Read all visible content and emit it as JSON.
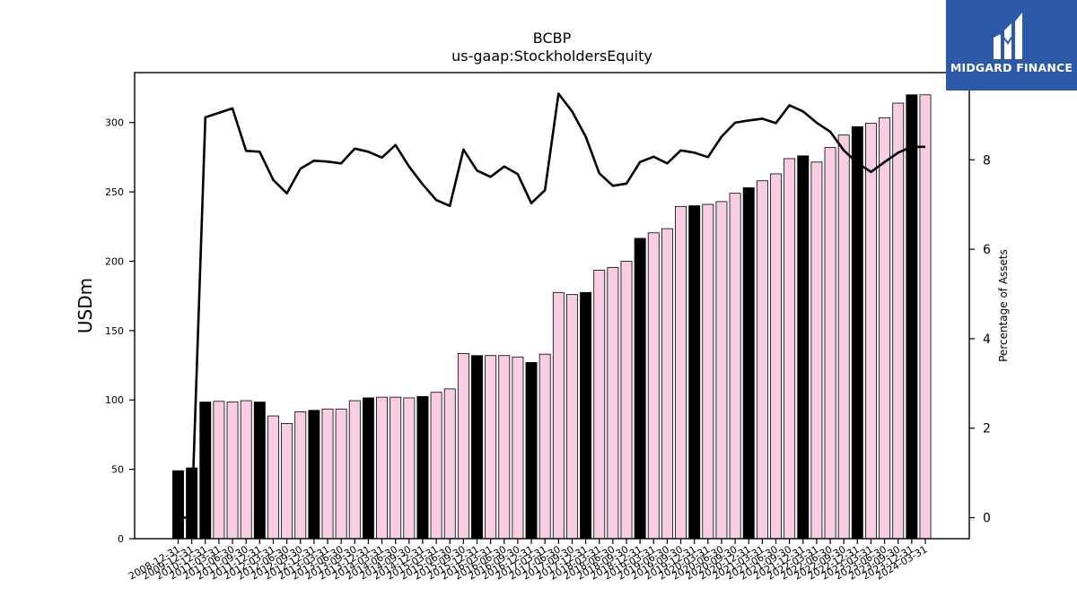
{
  "brand": {
    "name": "MIDGARD FINANCE",
    "background": "#2d5aa8",
    "text_color": "#ffffff"
  },
  "chart_data": {
    "type": "bar+line",
    "title": "BCBP",
    "subtitle": "us-gaap:StockholdersEquity",
    "ylabel": "USDm",
    "y2label": "Percentage of Assets",
    "ylim": [
      0,
      336
    ],
    "y2lim": [
      -0.47,
      9.95
    ],
    "yticks": [
      0,
      50,
      100,
      150,
      200,
      250,
      300
    ],
    "y2ticks": [
      0,
      2,
      4,
      6,
      8
    ],
    "grid": false,
    "colors": {
      "annual_bar": "#000000",
      "quarter_bar": "#f8cce2",
      "bar_edge": "#000000",
      "line": "#000000"
    },
    "categories": [
      "2008-12-31",
      "2009-12-31",
      "2010-12-31",
      "2011-03-31",
      "2011-06-30",
      "2011-09-30",
      "2011-12-31",
      "2012-03-31",
      "2012-06-30",
      "2012-09-30",
      "2012-12-31",
      "2013-03-31",
      "2013-06-30",
      "2013-09-30",
      "2013-12-31",
      "2014-03-31",
      "2014-06-30",
      "2014-09-30",
      "2014-12-31",
      "2015-03-31",
      "2015-06-30",
      "2015-09-30",
      "2015-12-31",
      "2016-03-31",
      "2016-06-30",
      "2016-09-30",
      "2016-12-31",
      "2017-03-31",
      "2017-06-30",
      "2017-09-30",
      "2017-12-31",
      "2018-03-31",
      "2018-06-30",
      "2018-09-30",
      "2018-12-31",
      "2019-03-31",
      "2019-06-30",
      "2019-09-30",
      "2019-12-31",
      "2020-03-31",
      "2020-06-30",
      "2020-09-30",
      "2020-12-31",
      "2021-03-31",
      "2021-06-30",
      "2021-09-30",
      "2021-12-31",
      "2022-03-31",
      "2022-06-30",
      "2022-09-30",
      "2022-12-31",
      "2023-03-31",
      "2023-06-30",
      "2023-09-30",
      "2023-12-31",
      "2024-03-31"
    ],
    "series": [
      {
        "kind": "bar",
        "values": [
          49,
          51,
          98.5,
          99,
          98.5,
          99.5,
          98.5,
          88.5,
          83,
          91.5,
          92.5,
          93.5,
          93.5,
          99.5,
          101.5,
          102,
          102,
          101.5,
          102.5,
          105.5,
          108,
          133.5,
          132,
          132,
          132,
          131,
          127,
          133,
          177.5,
          176,
          177.5,
          193.5,
          195.5,
          200,
          216.5,
          220.5,
          223.5,
          239.5,
          240,
          241,
          243,
          249,
          253,
          258,
          263,
          274,
          276,
          271.5,
          282,
          291,
          297,
          299.5,
          303.5,
          314,
          320,
          320
        ],
        "annual": [
          true,
          true,
          true,
          false,
          false,
          false,
          true,
          false,
          false,
          false,
          true,
          false,
          false,
          false,
          true,
          false,
          false,
          false,
          true,
          false,
          false,
          false,
          true,
          false,
          false,
          false,
          true,
          false,
          false,
          false,
          true,
          false,
          false,
          false,
          true,
          false,
          false,
          false,
          true,
          false,
          false,
          false,
          true,
          false,
          false,
          false,
          true,
          false,
          false,
          false,
          true,
          false,
          false,
          false,
          true,
          false
        ]
      },
      {
        "kind": "line",
        "axis": "right",
        "values": [
          0,
          0,
          8.95,
          9.05,
          9.15,
          8.2,
          8.18,
          7.55,
          7.25,
          7.8,
          7.98,
          7.96,
          7.92,
          8.25,
          8.18,
          8.05,
          8.33,
          7.85,
          7.45,
          7.1,
          6.97,
          8.23,
          7.76,
          7.62,
          7.85,
          7.68,
          7.03,
          7.32,
          9.48,
          9.08,
          8.52,
          7.7,
          7.42,
          7.47,
          7.95,
          8.07,
          7.92,
          8.21,
          8.16,
          8.06,
          8.52,
          8.83,
          8.88,
          8.92,
          8.82,
          9.22,
          9.08,
          8.83,
          8.63,
          8.21,
          7.93,
          7.73,
          7.95,
          8.16,
          8.29,
          8.29
        ]
      }
    ]
  }
}
